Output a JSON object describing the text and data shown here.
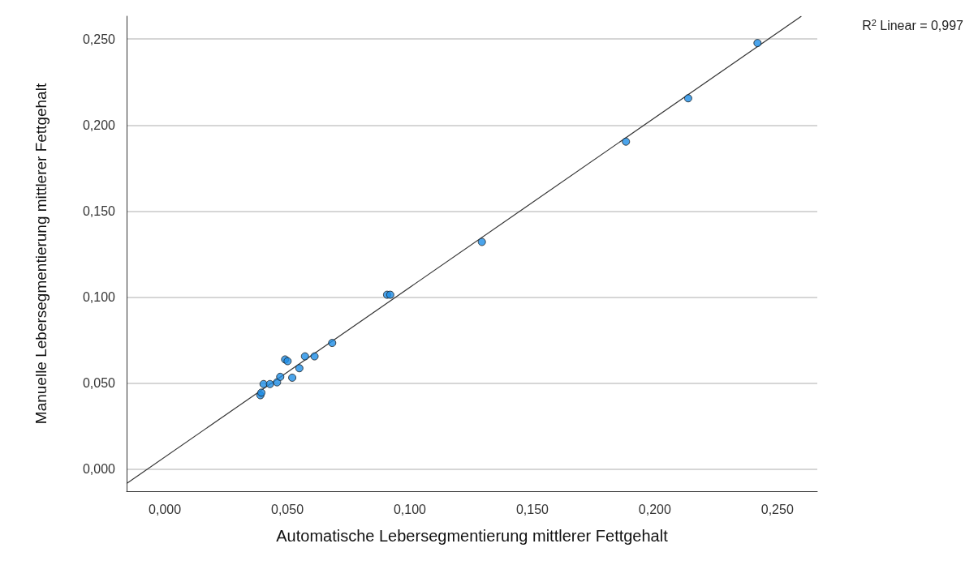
{
  "chart_data": {
    "type": "scatter",
    "xlabel": "Automatische Lebersegmentierung mittlerer Fettgehalt",
    "ylabel": "Manuelle Lebersegmentierung mittlerer Fettgehalt",
    "annotations": [
      "R$^{2}$ Linear = 0,997"
    ],
    "xlim": [
      -0.0156,
      0.2663
    ],
    "ylim": [
      -0.0128,
      0.2633
    ],
    "xticks": [
      {
        "value": 0,
        "label": "0,000"
      },
      {
        "value": 0.05,
        "label": "0,050"
      },
      {
        "value": 0.1,
        "label": "0,100"
      },
      {
        "value": 0.15,
        "label": "0,150"
      },
      {
        "value": 0.2,
        "label": "0,200"
      },
      {
        "value": 0.25,
        "label": "0,250"
      }
    ],
    "yticks": [
      {
        "value": 0,
        "label": "0,000"
      },
      {
        "value": 0.05,
        "label": "0,050"
      },
      {
        "value": 0.1,
        "label": "0,100"
      },
      {
        "value": 0.15,
        "label": "0,150"
      },
      {
        "value": 0.2,
        "label": "0,200"
      },
      {
        "value": 0.25,
        "label": "0,250"
      }
    ],
    "grid": "y",
    "marker": "circle",
    "series": [
      {
        "color": "#1e8de6",
        "x": [
          0.039,
          0.0394,
          0.0403,
          0.0429,
          0.0458,
          0.0471,
          0.052,
          0.0491,
          0.0501,
          0.0549,
          0.0572,
          0.0611,
          0.0683,
          0.0907,
          0.092,
          0.1294,
          0.1882,
          0.2136,
          0.2419
        ],
        "values": [
          0.043,
          0.0445,
          0.0495,
          0.0495,
          0.0505,
          0.0537,
          0.0532,
          0.0638,
          0.0628,
          0.0587,
          0.0656,
          0.0656,
          0.0734,
          0.1014,
          0.1014,
          0.1321,
          0.1904,
          0.2156,
          0.2477
        ]
      },
      {
        "type": "line",
        "color": "#333333",
        "line_style": "solid",
        "marker": "none",
        "x": [
          -0.0156,
          0.2598
        ],
        "values": [
          -0.0083,
          0.2633
        ]
      }
    ]
  }
}
